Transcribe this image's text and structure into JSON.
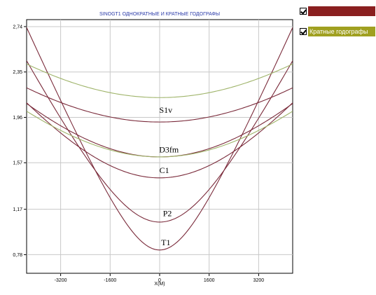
{
  "colors": {
    "series_single": "#7a2a3a",
    "series_multiple": "#9fb46a",
    "legend_single_bg": "#8a1f1f",
    "legend_multiple_bg": "#a0a020"
  },
  "legend": {
    "items": [
      {
        "label": "",
        "checked": true,
        "color": "#8a1f1f"
      },
      {
        "label": "Кратные годографы",
        "checked": true,
        "color": "#a0a020"
      }
    ]
  },
  "chart_data": {
    "type": "line",
    "title": "SINOGT1 ОДНОКРАТНЫЕ И КРАТНЫЕ ГОДОГРАФЫ",
    "xlabel": "X(M)",
    "ylabel": "",
    "xlim": [
      -4300,
      4300
    ],
    "ylim": [
      0.62,
      2.8
    ],
    "x_ticks": [
      -3200,
      -1600,
      0,
      1600,
      3200
    ],
    "y_ticks": [
      0.78,
      1.17,
      1.57,
      1.96,
      2.35,
      2.74
    ],
    "x_tick_labels": [
      "-3200",
      "-1600",
      "0",
      "1600",
      "3200"
    ],
    "y_tick_labels": [
      "0,78",
      "1,17",
      "1,57",
      "1,96",
      "2,35",
      "2,74"
    ],
    "grid": true,
    "series": [
      {
        "group": "single",
        "t0": 1.92,
        "v": 3900,
        "label": "S1v",
        "label_x": 200,
        "label_y": 2.0
      },
      {
        "group": "single",
        "t0": 1.62,
        "v": 3300,
        "label": "D3fm",
        "label_x": 300,
        "label_y": 1.66
      },
      {
        "group": "single",
        "t0": 1.44,
        "v": 2850,
        "label": "C1",
        "label_x": 150,
        "label_y": 1.48
      },
      {
        "group": "single",
        "t0": 1.06,
        "v": 1950,
        "label": "P2",
        "label_x": 250,
        "label_y": 1.11
      },
      {
        "group": "single",
        "t0": 0.82,
        "v": 1650,
        "label": "T1",
        "label_x": 200,
        "label_y": 0.86
      },
      {
        "group": "multiple",
        "t0": 2.13,
        "v": 3750,
        "label": "",
        "label_x": 0,
        "label_y": 0
      },
      {
        "group": "multiple",
        "t0": 1.62,
        "v": 3600,
        "label": "",
        "label_x": 0,
        "label_y": 0
      }
    ]
  }
}
